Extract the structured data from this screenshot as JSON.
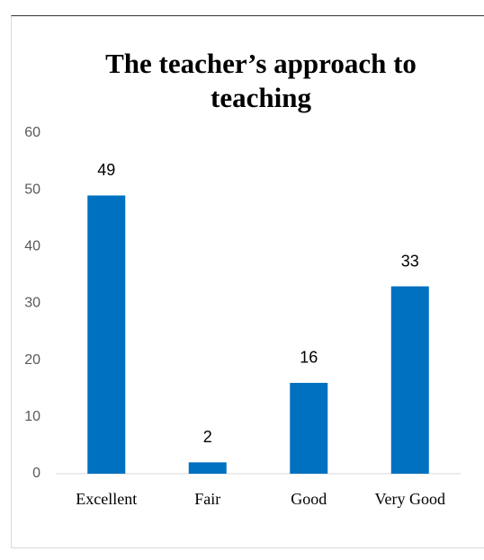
{
  "chart_data": {
    "type": "bar",
    "title": "The teacher’s approach to teaching",
    "categories": [
      "Excellent",
      "Fair",
      "Good",
      "Very Good"
    ],
    "values": [
      49,
      2,
      16,
      33
    ],
    "color": "#0070c0",
    "ylim": [
      0,
      60
    ],
    "yticks": [
      0,
      10,
      20,
      30,
      40,
      50,
      60
    ],
    "grid": false
  }
}
